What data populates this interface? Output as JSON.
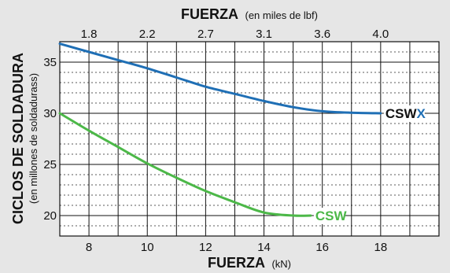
{
  "chart_data": {
    "type": "line",
    "top_axis": {
      "title": "FUERZA",
      "unit": "(en miles de lbf)",
      "tick_labels": [
        "1.8",
        "2.2",
        "2.7",
        "3.1",
        "3.6",
        "4.0"
      ],
      "tick_positions_kn": [
        8,
        10,
        12,
        14,
        16,
        18
      ]
    },
    "bottom_axis": {
      "title": "FUERZA",
      "unit": "(kN)",
      "tick_labels": [
        "8",
        "10",
        "12",
        "14",
        "16",
        "18"
      ],
      "ticks": [
        8,
        10,
        12,
        14,
        16,
        18
      ],
      "range": [
        7,
        20
      ]
    },
    "left_axis": {
      "title": "CICLOS DE SOLDADURA",
      "unit": "(en millones de soldadurass)",
      "tick_labels": [
        "20",
        "25",
        "30",
        "35"
      ],
      "ticks": [
        20,
        25,
        30,
        35
      ],
      "range": [
        18,
        37
      ]
    },
    "grid": true,
    "series": [
      {
        "name_text": "CSW",
        "name_accent": "X",
        "color": "#1f6fb5",
        "label_color": "#111111",
        "accent_color": "#1f6fb5",
        "x": [
          7,
          8,
          9,
          10,
          11,
          12,
          13,
          14,
          15,
          16,
          17,
          18
        ],
        "y": [
          36.8,
          36.0,
          35.2,
          34.4,
          33.5,
          32.6,
          31.9,
          31.2,
          30.6,
          30.2,
          30.05,
          30.0
        ]
      },
      {
        "name_text": "CSW",
        "name_accent": "",
        "color": "#4cb848",
        "label_color": "#4cb848",
        "accent_color": "#4cb848",
        "x": [
          7,
          8,
          9,
          10,
          11,
          12,
          13,
          14,
          15,
          15.6
        ],
        "y": [
          30.0,
          28.3,
          26.7,
          25.1,
          23.7,
          22.4,
          21.3,
          20.3,
          20.0,
          20.0
        ]
      }
    ]
  }
}
